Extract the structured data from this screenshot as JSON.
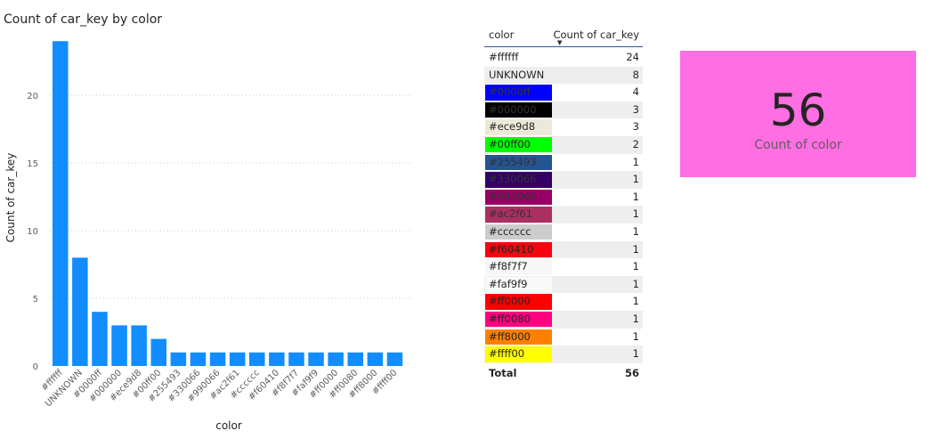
{
  "chart_data": {
    "type": "bar",
    "title": "Count of car_key by color",
    "xlabel": "color",
    "ylabel": "Count of car_key",
    "categories": [
      "#ffffff",
      "UNKNOWN",
      "#0000ff",
      "#000000",
      "#ece9d8",
      "#00ff00",
      "#255493",
      "#330066",
      "#990066",
      "#ac2f61",
      "#cccccc",
      "#f60410",
      "#f8f7f7",
      "#faf9f9",
      "#ff0000",
      "#ff0080",
      "#ff8000",
      "#ffff00"
    ],
    "values": [
      24,
      8,
      4,
      3,
      3,
      2,
      1,
      1,
      1,
      1,
      1,
      1,
      1,
      1,
      1,
      1,
      1,
      1
    ],
    "ylim": [
      0,
      25
    ],
    "yticks": [
      0,
      5,
      10,
      15,
      20
    ],
    "grid": true,
    "bar_color": "#118dff"
  },
  "table": {
    "col_color": "color",
    "col_count": "Count of car_key",
    "rows": [
      {
        "color": "#ffffff",
        "count": "24",
        "swatch": "#ffffff"
      },
      {
        "color": "UNKNOWN",
        "count": "8",
        "swatch": "#eeeeee"
      },
      {
        "color": "#0000ff",
        "count": "4",
        "swatch": "#0000ff"
      },
      {
        "color": "#000000",
        "count": "3",
        "swatch": "#000000"
      },
      {
        "color": "#ece9d8",
        "count": "3",
        "swatch": "#ece9d8"
      },
      {
        "color": "#00ff00",
        "count": "2",
        "swatch": "#00ff00"
      },
      {
        "color": "#255493",
        "count": "1",
        "swatch": "#255493"
      },
      {
        "color": "#330066",
        "count": "1",
        "swatch": "#330066"
      },
      {
        "color": "#990066",
        "count": "1",
        "swatch": "#990066"
      },
      {
        "color": "#ac2f61",
        "count": "1",
        "swatch": "#ac2f61"
      },
      {
        "color": "#cccccc",
        "count": "1",
        "swatch": "#cccccc"
      },
      {
        "color": "#f60410",
        "count": "1",
        "swatch": "#f60410"
      },
      {
        "color": "#f8f7f7",
        "count": "1",
        "swatch": "#f8f7f7"
      },
      {
        "color": "#faf9f9",
        "count": "1",
        "swatch": "#faf9f9"
      },
      {
        "color": "#ff0000",
        "count": "1",
        "swatch": "#ff0000"
      },
      {
        "color": "#ff0080",
        "count": "1",
        "swatch": "#ff0080"
      },
      {
        "color": "#ff8000",
        "count": "1",
        "swatch": "#ff8000"
      },
      {
        "color": "#ffff00",
        "count": "1",
        "swatch": "#ffff00"
      }
    ],
    "total_label": "Total",
    "total_value": "56"
  },
  "card": {
    "value": "56",
    "label": "Count of color",
    "background": "#ff6ee2"
  }
}
